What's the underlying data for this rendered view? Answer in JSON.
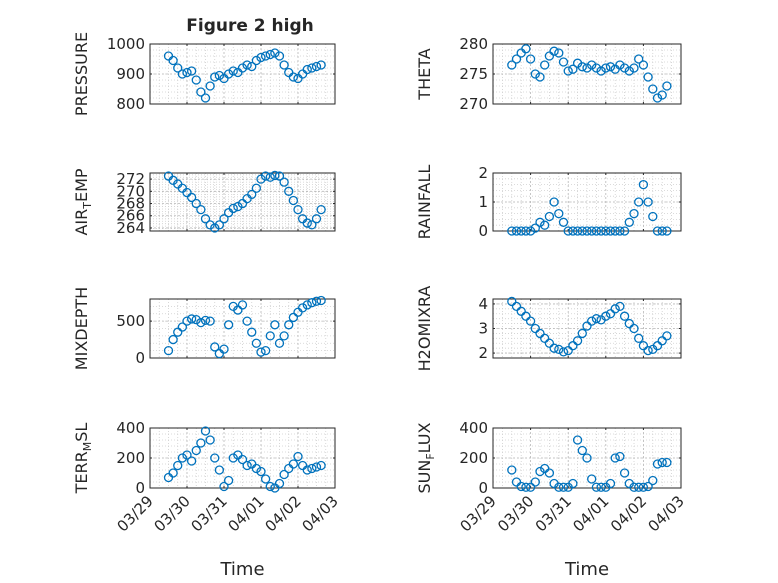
{
  "figure": {
    "title": "Figure 2 high",
    "xlabel": "Time",
    "date_ticks": [
      "03/29",
      "03/30",
      "03/31",
      "04/01",
      "04/02",
      "04/03"
    ],
    "marker_color": "#0072BD"
  },
  "chart_data": [
    {
      "type": "scatter",
      "id": "pressure",
      "ylabel": "PRESSURE",
      "ylim": [
        800,
        1000
      ],
      "yticks": [
        "800",
        "900",
        "1000"
      ],
      "grid": true,
      "x_dates": [
        "03/29 12:00",
        "03/29 15:00",
        "03/29 18:00",
        "03/29 21:00",
        "03/30 00:00",
        "03/30 03:00",
        "03/30 06:00",
        "03/30 09:00",
        "03/30 12:00",
        "03/30 15:00",
        "03/30 18:00",
        "03/30 21:00",
        "03/31 00:00",
        "03/31 03:00",
        "03/31 06:00",
        "03/31 09:00",
        "03/31 12:00",
        "03/31 15:00",
        "03/31 18:00",
        "03/31 21:00",
        "04/01 00:00",
        "04/01 03:00",
        "04/01 06:00",
        "04/01 09:00",
        "04/01 12:00",
        "04/01 15:00",
        "04/01 18:00",
        "04/01 21:00",
        "04/02 00:00",
        "04/02 03:00",
        "04/02 06:00",
        "04/02 09:00",
        "04/02 12:00",
        "04/02 15:00"
      ],
      "y": [
        960,
        945,
        920,
        900,
        905,
        910,
        880,
        840,
        820,
        860,
        890,
        895,
        885,
        900,
        910,
        905,
        920,
        930,
        925,
        945,
        955,
        960,
        965,
        970,
        960,
        930,
        905,
        890,
        885,
        900,
        915,
        920,
        925,
        930
      ]
    },
    {
      "type": "scatter",
      "id": "theta",
      "ylabel": "THETA",
      "ylim": [
        270,
        280
      ],
      "yticks": [
        "270",
        "275",
        "280"
      ],
      "grid": true,
      "x_dates": [
        "03/29 12:00",
        "03/29 15:00",
        "03/29 18:00",
        "03/29 21:00",
        "03/30 00:00",
        "03/30 03:00",
        "03/30 06:00",
        "03/30 09:00",
        "03/30 12:00",
        "03/30 15:00",
        "03/30 18:00",
        "03/30 21:00",
        "03/31 00:00",
        "03/31 03:00",
        "03/31 06:00",
        "03/31 09:00",
        "03/31 12:00",
        "03/31 15:00",
        "03/31 18:00",
        "03/31 21:00",
        "04/01 00:00",
        "04/01 03:00",
        "04/01 06:00",
        "04/01 09:00",
        "04/01 12:00",
        "04/01 15:00",
        "04/01 18:00",
        "04/01 21:00",
        "04/02 00:00",
        "04/02 03:00",
        "04/02 06:00",
        "04/02 09:00",
        "04/02 12:00",
        "04/02 15:00"
      ],
      "y": [
        276.5,
        277.5,
        278.5,
        279.2,
        277.5,
        275.0,
        274.5,
        276.5,
        278.0,
        278.8,
        278.5,
        277.0,
        275.5,
        275.8,
        276.8,
        276.2,
        276.0,
        276.5,
        276.0,
        275.5,
        276.0,
        276.2,
        275.8,
        276.5,
        276.0,
        275.5,
        276.0,
        277.5,
        276.5,
        274.5,
        272.5,
        271.0,
        271.5,
        273.0
      ]
    },
    {
      "type": "scatter",
      "id": "air_temp",
      "ylabel": "AIR_TEMP",
      "ylim": [
        263.5,
        273
      ],
      "yticks": [
        "264",
        "266",
        "268",
        "270",
        "272"
      ],
      "grid": true,
      "x_dates": [
        "03/29 12:00",
        "03/29 15:00",
        "03/29 18:00",
        "03/29 21:00",
        "03/30 00:00",
        "03/30 03:00",
        "03/30 06:00",
        "03/30 09:00",
        "03/30 12:00",
        "03/30 15:00",
        "03/30 18:00",
        "03/30 21:00",
        "03/31 00:00",
        "03/31 03:00",
        "03/31 06:00",
        "03/31 09:00",
        "03/31 12:00",
        "03/31 15:00",
        "03/31 18:00",
        "03/31 21:00",
        "04/01 00:00",
        "04/01 03:00",
        "04/01 06:00",
        "04/01 09:00",
        "04/01 12:00",
        "04/01 15:00",
        "04/01 18:00",
        "04/01 21:00",
        "04/02 00:00",
        "04/02 03:00",
        "04/02 06:00",
        "04/02 09:00",
        "04/02 12:00",
        "04/02 15:00"
      ],
      "y": [
        272.5,
        271.8,
        271.2,
        270.5,
        269.8,
        269.0,
        268.0,
        267.0,
        265.5,
        264.5,
        264.0,
        264.5,
        265.5,
        266.5,
        267.2,
        267.5,
        268.0,
        268.8,
        269.5,
        270.5,
        272.0,
        272.5,
        272.3,
        272.6,
        272.5,
        271.5,
        270.0,
        268.5,
        267.0,
        265.5,
        264.8,
        264.5,
        265.5,
        267.0
      ]
    },
    {
      "type": "scatter",
      "id": "rainfall",
      "ylabel": "RAINFALL",
      "ylim": [
        0,
        2
      ],
      "yticks": [
        "0",
        "1",
        "2"
      ],
      "grid": true,
      "x_dates": [
        "03/29 12:00",
        "03/29 15:00",
        "03/29 18:00",
        "03/29 21:00",
        "03/30 00:00",
        "03/30 03:00",
        "03/30 06:00",
        "03/30 09:00",
        "03/30 12:00",
        "03/30 15:00",
        "03/30 18:00",
        "03/30 21:00",
        "03/31 00:00",
        "03/31 03:00",
        "03/31 06:00",
        "03/31 09:00",
        "03/31 12:00",
        "03/31 15:00",
        "03/31 18:00",
        "03/31 21:00",
        "04/01 00:00",
        "04/01 03:00",
        "04/01 06:00",
        "04/01 09:00",
        "04/01 12:00",
        "04/01 15:00",
        "04/01 18:00",
        "04/01 21:00",
        "04/02 00:00",
        "04/02 03:00",
        "04/02 06:00",
        "04/02 09:00",
        "04/02 12:00",
        "04/02 15:00"
      ],
      "y": [
        0,
        0,
        0,
        0,
        0,
        0.1,
        0.3,
        0.2,
        0.5,
        1.0,
        0.6,
        0.3,
        0,
        0,
        0,
        0,
        0,
        0,
        0,
        0,
        0,
        0,
        0,
        0,
        0,
        0.3,
        0.6,
        1.0,
        1.6,
        1.0,
        0.5,
        0,
        0,
        0
      ]
    },
    {
      "type": "scatter",
      "id": "mixdepth",
      "ylabel": "MIXDEPTH",
      "ylim": [
        0,
        800
      ],
      "yticks": [
        "0",
        "500"
      ],
      "grid": true,
      "x_dates": [
        "03/29 12:00",
        "03/29 15:00",
        "03/29 18:00",
        "03/29 21:00",
        "03/30 00:00",
        "03/30 03:00",
        "03/30 06:00",
        "03/30 09:00",
        "03/30 12:00",
        "03/30 15:00",
        "03/30 18:00",
        "03/30 21:00",
        "03/31 00:00",
        "03/31 03:00",
        "03/31 06:00",
        "03/31 09:00",
        "03/31 12:00",
        "03/31 15:00",
        "03/31 18:00",
        "03/31 21:00",
        "04/01 00:00",
        "04/01 03:00",
        "04/01 06:00",
        "04/01 09:00",
        "04/01 12:00",
        "04/01 15:00",
        "04/01 18:00",
        "04/01 21:00",
        "04/02 00:00",
        "04/02 03:00",
        "04/02 06:00",
        "04/02 09:00",
        "04/02 12:00",
        "04/02 15:00"
      ],
      "y": [
        100,
        250,
        350,
        420,
        500,
        530,
        520,
        480,
        510,
        500,
        150,
        60,
        120,
        450,
        700,
        650,
        720,
        500,
        350,
        200,
        80,
        100,
        300,
        450,
        200,
        300,
        450,
        550,
        620,
        680,
        720,
        750,
        770,
        780
      ]
    },
    {
      "type": "scatter",
      "id": "h2omixra",
      "ylabel": "H2OMIXRA",
      "ylim": [
        1.8,
        4.2
      ],
      "yticks": [
        "2",
        "3",
        "4"
      ],
      "grid": true,
      "x_dates": [
        "03/29 12:00",
        "03/29 15:00",
        "03/29 18:00",
        "03/29 21:00",
        "03/30 00:00",
        "03/30 03:00",
        "03/30 06:00",
        "03/30 09:00",
        "03/30 12:00",
        "03/30 15:00",
        "03/30 18:00",
        "03/30 21:00",
        "03/31 00:00",
        "03/31 03:00",
        "03/31 06:00",
        "03/31 09:00",
        "03/31 12:00",
        "03/31 15:00",
        "03/31 18:00",
        "03/31 21:00",
        "04/01 00:00",
        "04/01 03:00",
        "04/01 06:00",
        "04/01 09:00",
        "04/01 12:00",
        "04/01 15:00",
        "04/01 18:00",
        "04/01 21:00",
        "04/02 00:00",
        "04/02 03:00",
        "04/02 06:00",
        "04/02 09:00",
        "04/02 12:00",
        "04/02 15:00"
      ],
      "y": [
        4.1,
        3.9,
        3.7,
        3.5,
        3.3,
        3.0,
        2.8,
        2.6,
        2.4,
        2.2,
        2.15,
        2.05,
        2.1,
        2.3,
        2.5,
        2.8,
        3.1,
        3.3,
        3.4,
        3.35,
        3.5,
        3.6,
        3.8,
        3.9,
        3.5,
        3.2,
        3.0,
        2.6,
        2.3,
        2.1,
        2.15,
        2.3,
        2.5,
        2.7
      ]
    },
    {
      "type": "scatter",
      "id": "terr_msl",
      "ylabel": "TERR_MSL",
      "ylim": [
        0,
        400
      ],
      "yticks": [
        "0",
        "200",
        "400"
      ],
      "grid": true,
      "x_dates": [
        "03/29 12:00",
        "03/29 15:00",
        "03/29 18:00",
        "03/29 21:00",
        "03/30 00:00",
        "03/30 03:00",
        "03/30 06:00",
        "03/30 09:00",
        "03/30 12:00",
        "03/30 15:00",
        "03/30 18:00",
        "03/30 21:00",
        "03/31 00:00",
        "03/31 03:00",
        "03/31 06:00",
        "03/31 09:00",
        "03/31 12:00",
        "03/31 15:00",
        "03/31 18:00",
        "03/31 21:00",
        "04/01 00:00",
        "04/01 03:00",
        "04/01 06:00",
        "04/01 09:00",
        "04/01 12:00",
        "04/01 15:00",
        "04/01 18:00",
        "04/01 21:00",
        "04/02 00:00",
        "04/02 03:00",
        "04/02 06:00",
        "04/02 09:00",
        "04/02 12:00",
        "04/02 15:00"
      ],
      "y": [
        70,
        100,
        150,
        200,
        220,
        180,
        250,
        300,
        380,
        320,
        200,
        120,
        10,
        50,
        200,
        220,
        190,
        150,
        160,
        130,
        110,
        60,
        10,
        0,
        30,
        90,
        130,
        160,
        210,
        150,
        120,
        130,
        140,
        150
      ]
    },
    {
      "type": "scatter",
      "id": "sun_flux",
      "ylabel": "SUN_FLUX",
      "ylim": [
        0,
        400
      ],
      "yticks": [
        "0",
        "200",
        "400"
      ],
      "grid": true,
      "x_dates": [
        "03/29 12:00",
        "03/29 15:00",
        "03/29 18:00",
        "03/29 21:00",
        "03/30 00:00",
        "03/30 03:00",
        "03/30 06:00",
        "03/30 09:00",
        "03/30 12:00",
        "03/30 15:00",
        "03/30 18:00",
        "03/30 21:00",
        "03/31 00:00",
        "03/31 03:00",
        "03/31 06:00",
        "03/31 09:00",
        "03/31 12:00",
        "03/31 15:00",
        "03/31 18:00",
        "03/31 21:00",
        "04/01 00:00",
        "04/01 03:00",
        "04/01 06:00",
        "04/01 09:00",
        "04/01 12:00",
        "04/01 15:00",
        "04/01 18:00",
        "04/01 21:00",
        "04/02 00:00",
        "04/02 03:00",
        "04/02 06:00",
        "04/02 09:00",
        "04/02 12:00",
        "04/02 15:00"
      ],
      "y": [
        120,
        40,
        10,
        5,
        5,
        40,
        110,
        130,
        100,
        30,
        5,
        5,
        5,
        30,
        320,
        250,
        200,
        60,
        5,
        5,
        5,
        30,
        200,
        210,
        100,
        30,
        5,
        5,
        5,
        10,
        50,
        160,
        170,
        170
      ]
    }
  ]
}
